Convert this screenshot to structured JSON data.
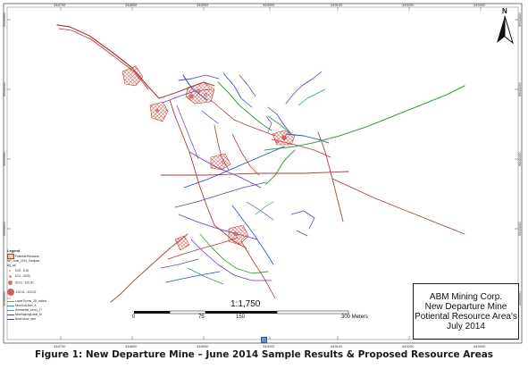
{
  "figure": {
    "caption": "Figure 1: New Departure Mine – June 2014 Sample Results & Proposed Resource Areas"
  },
  "title_block": {
    "line1": "ABM Mining Corp.",
    "line2": "New Departure Mine",
    "line3": "Potiental Resource Area's",
    "line4": "July 2014"
  },
  "scale": {
    "ratio": "1:1,750",
    "ticks": [
      "0",
      "75",
      "150",
      "300 Meters"
    ]
  },
  "north_arrow": {
    "label": "N",
    "icon": "north-arrow-icon"
  },
  "grid_ticks": {
    "top": [
      "348700",
      "348800",
      "348900",
      "349000",
      "349100",
      "349200",
      "349300"
    ],
    "bottom": [
      "348700",
      "348800",
      "348900",
      "349000",
      "349100",
      "349200",
      "349300"
    ],
    "left": [
      "5600300",
      "5600200",
      "5600100",
      "5600000",
      "5599900"
    ],
    "right": [
      "5600300",
      "5600200",
      "5600100",
      "5600000",
      "5599900"
    ]
  },
  "legend": {
    "title": "Legend",
    "items": [
      {
        "label": "Potential Resource",
        "icon": "hatched-polygon-icon",
        "color": "#c0392b"
      },
      {
        "label": "NR_June_2014_Samples",
        "icon": "none",
        "color": "#000000"
      },
      {
        "label": "Ag_val",
        "icon": "none",
        "color": "#000000"
      },
      {
        "label": "0.00 - 5.00",
        "icon": "circle-symbol-icon",
        "color": "#e8a0a0"
      },
      {
        "label": "5.01 - 30.00",
        "icon": "circle-symbol-icon",
        "color": "#e08a8a"
      },
      {
        "label": "30.01 - 100.00",
        "icon": "circle-symbol-icon",
        "color": "#d97070"
      },
      {
        "label": "100.01 - 423.00",
        "icon": "circle-symbol-icon",
        "color": "#d35c5c"
      },
      {
        "label": "LowerTunnel_2D_outline",
        "icon": "line-icon",
        "color": "#4caf50"
      },
      {
        "label": "MineOutLevel_A",
        "icon": "line-icon",
        "color": "#1e88e5"
      },
      {
        "label": "Hornwelde_Level_17",
        "icon": "line-icon",
        "color": "#26a69a"
      },
      {
        "label": "MineSigningLabel_M",
        "icon": "line-icon",
        "color": "#3949ab"
      },
      {
        "label": "NewHouse_wire",
        "icon": "line-icon",
        "color": "#7b1fa2"
      }
    ]
  },
  "colors": {
    "resource": "#c0392b",
    "drift_red": "#b23a3a",
    "drift_purple": "#6a3fb5",
    "drift_blue": "#1f4fd6",
    "drift_green": "#3aa03a",
    "drift_teal": "#2a9d8f",
    "drift_brown": "#9b4a3a"
  }
}
